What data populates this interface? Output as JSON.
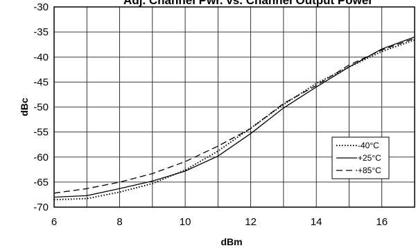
{
  "chart_data": {
    "type": "line",
    "title": "Adj. Channel Pwr. vs. Channel Output Power",
    "xlabel": "dBm",
    "ylabel": "dBc",
    "xlim": [
      6,
      17
    ],
    "ylim": [
      -70,
      -30
    ],
    "xticks": [
      "6",
      "8",
      "10",
      "12",
      "14",
      "16"
    ],
    "yticks": [
      "-30",
      "-35",
      "-40",
      "-45",
      "-50",
      "-55",
      "-60",
      "-65",
      "-70"
    ],
    "grid": true,
    "legend_position": "bottom-right",
    "series": [
      {
        "name": "-40°C",
        "style": "dotted",
        "color": "#000000",
        "points": [
          [
            6,
            -68.5
          ],
          [
            7,
            -68.3
          ],
          [
            8,
            -67.0
          ],
          [
            9,
            -65.3
          ],
          [
            10,
            -62.6
          ],
          [
            11,
            -58.8
          ],
          [
            12,
            -54.2
          ],
          [
            13,
            -49.5
          ],
          [
            14,
            -45.3
          ],
          [
            15,
            -42.0
          ],
          [
            16,
            -38.9
          ],
          [
            17,
            -36.6
          ]
        ]
      },
      {
        "name": "+25°C",
        "style": "solid",
        "color": "#000000",
        "points": [
          [
            6,
            -68.0
          ],
          [
            7,
            -67.7
          ],
          [
            8,
            -66.3
          ],
          [
            9,
            -64.8
          ],
          [
            10,
            -62.8
          ],
          [
            11,
            -59.8
          ],
          [
            12,
            -55.3
          ],
          [
            13,
            -50.2
          ],
          [
            14,
            -46.0
          ],
          [
            15,
            -42.0
          ],
          [
            16,
            -38.4
          ],
          [
            17,
            -36.0
          ]
        ]
      },
      {
        "name": "+85°C",
        "style": "dashed",
        "color": "#000000",
        "points": [
          [
            6,
            -67.2
          ],
          [
            7,
            -66.3
          ],
          [
            8,
            -65.0
          ],
          [
            9,
            -63.3
          ],
          [
            10,
            -60.9
          ],
          [
            11,
            -57.8
          ],
          [
            12,
            -54.3
          ],
          [
            13,
            -49.3
          ],
          [
            14,
            -45.7
          ],
          [
            15,
            -41.6
          ],
          [
            16,
            -38.6
          ],
          [
            17,
            -36.3
          ]
        ]
      }
    ]
  }
}
